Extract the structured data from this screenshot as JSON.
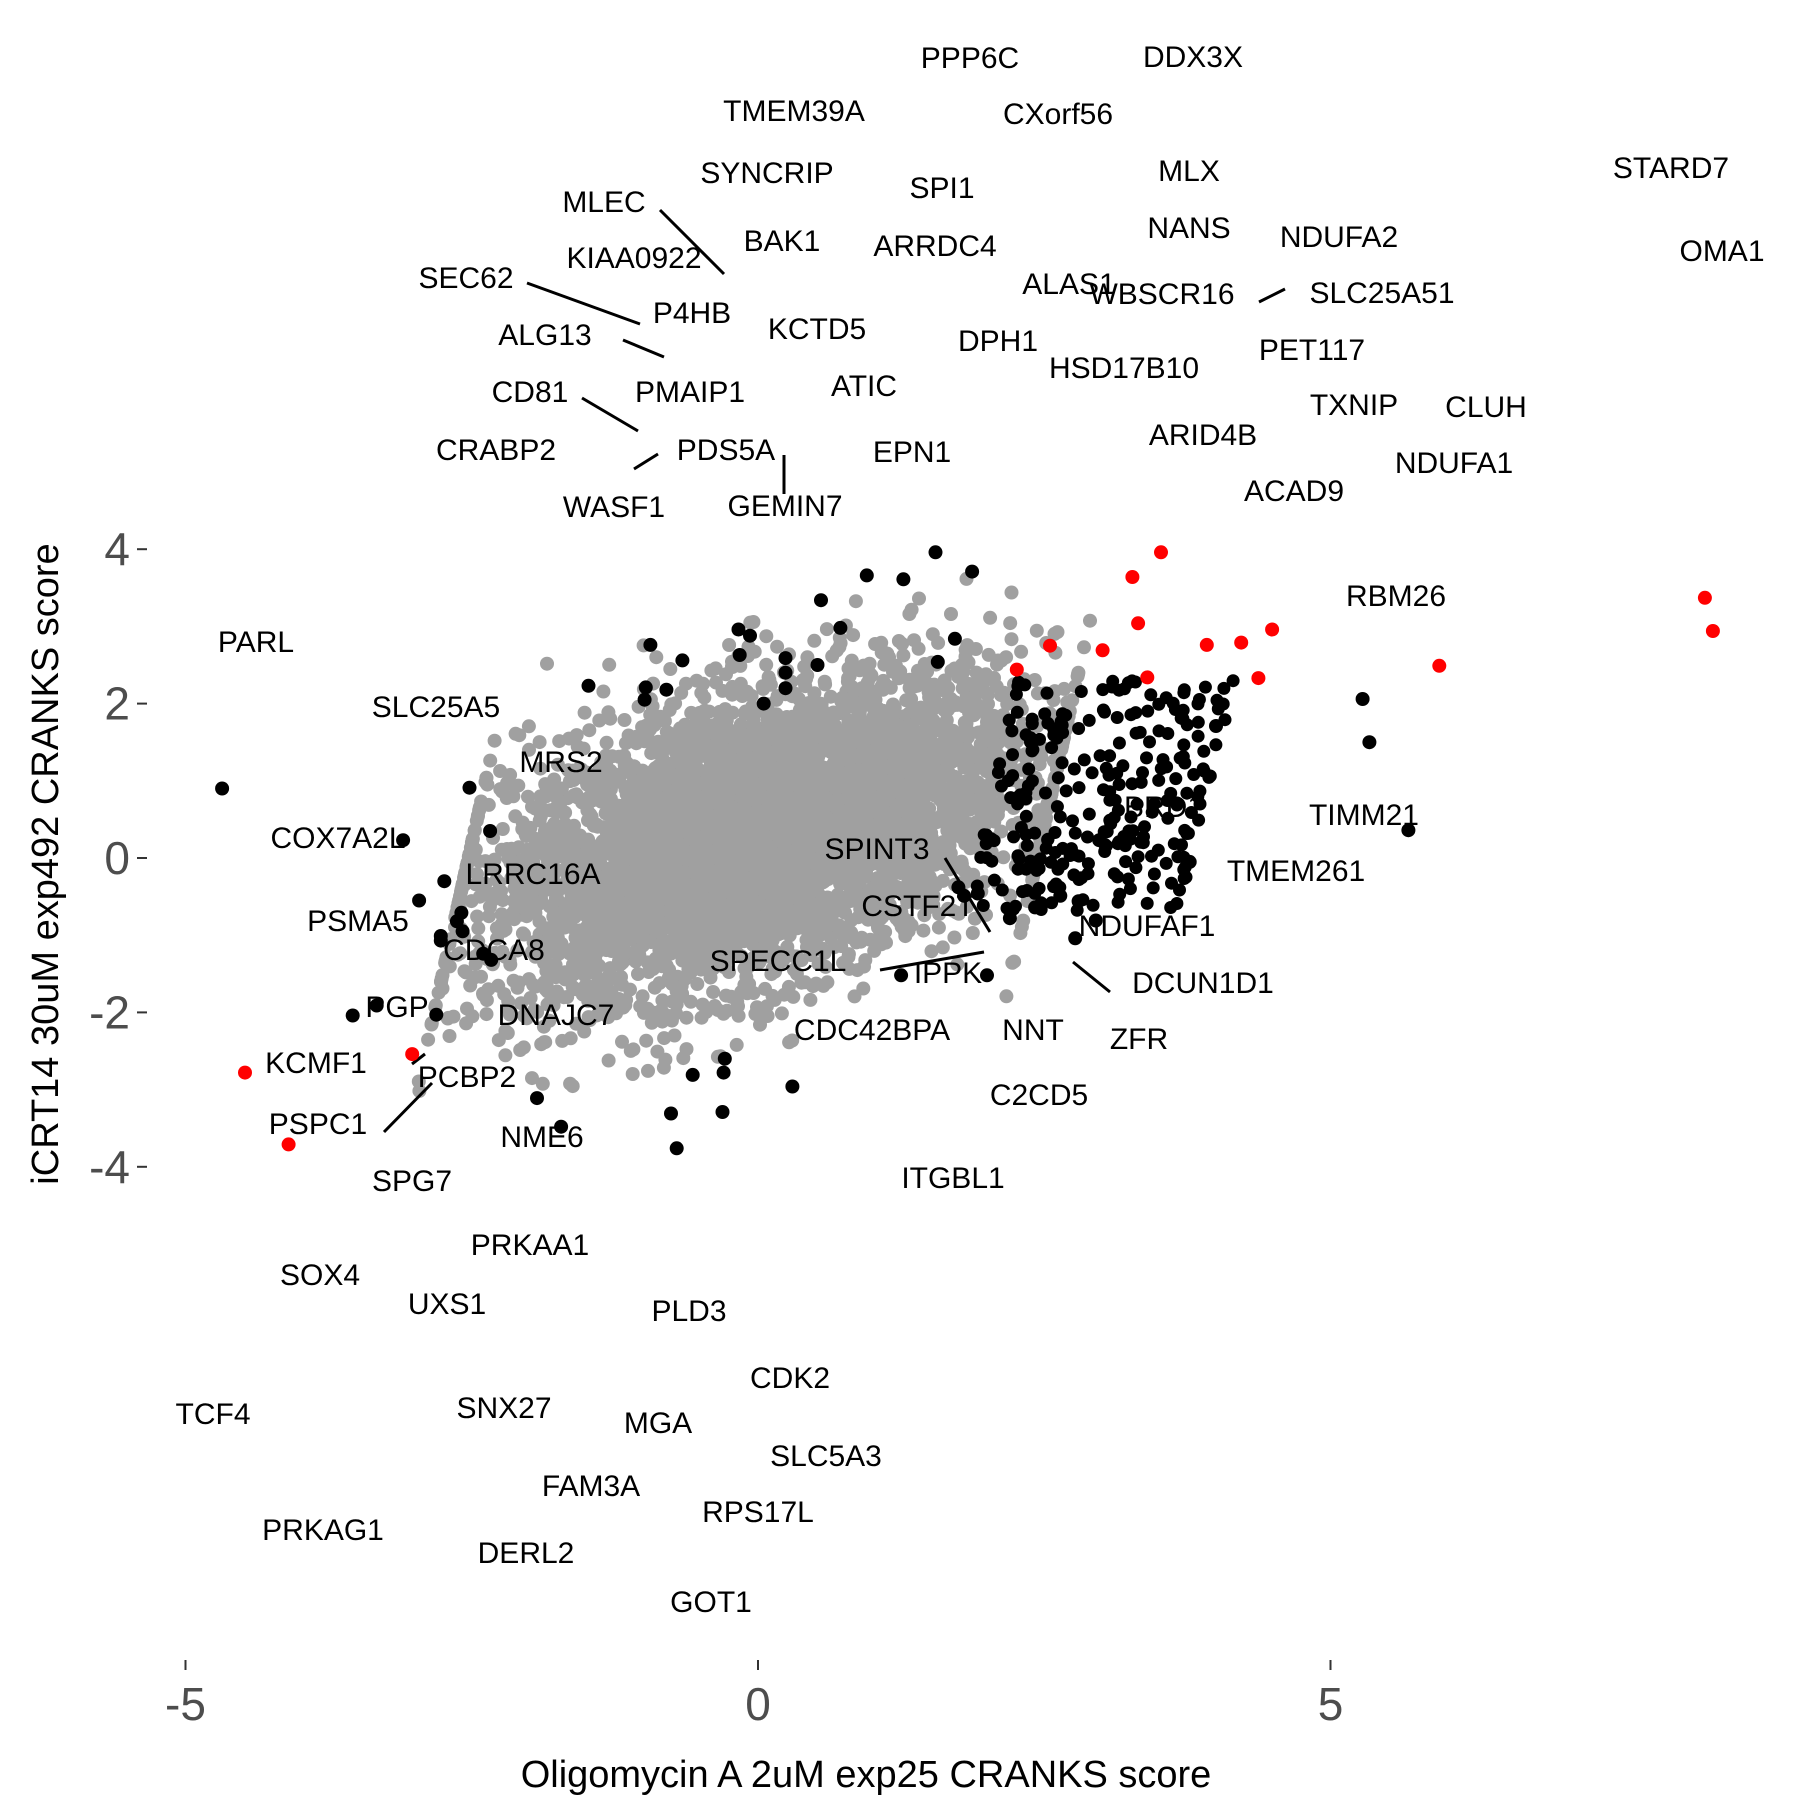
{
  "chart_data": {
    "type": "scatter",
    "xlabel": "Oligomycin A 2uM exp25 CRANKS score",
    "ylabel": "iCRT14 30uM exp492 CRANKS score",
    "xlim": [
      -5.5,
      8.9
    ],
    "ylim": [
      -4.2,
      4.4
    ],
    "xticks": [
      -5,
      0,
      5
    ],
    "yticks": [
      -4,
      -2,
      0,
      2,
      4
    ],
    "grid": false,
    "colors": {
      "background_points": "#a0a0a0",
      "labeled_points": "#000000",
      "highlighted_points": "#ff0000"
    },
    "background_cloud": {
      "description": "thousands of unlabeled genes",
      "center": [
        0,
        0.3
      ],
      "x_spread": 1.15,
      "y_spread": 0.95,
      "count": 5200
    },
    "points": [
      {
        "gene": "PPP6C",
        "x": 1.55,
        "y": 3.96,
        "highlight": false
      },
      {
        "gene": "DDX3X",
        "x": 3.52,
        "y": 3.96,
        "highlight": true
      },
      {
        "gene": "TMEM39A",
        "x": 0.95,
        "y": 3.66,
        "highlight": false
      },
      {
        "gene": "CXorf56",
        "x": 1.87,
        "y": 3.71,
        "highlight": false
      },
      {
        "gene": "SPI1",
        "x": 1.27,
        "y": 3.61,
        "highlight": false
      },
      {
        "gene": "MLX",
        "x": 3.27,
        "y": 3.64,
        "highlight": true
      },
      {
        "gene": "STARD7",
        "x": 8.27,
        "y": 3.37,
        "highlight": true
      },
      {
        "gene": "SYNCRIP",
        "x": 0.55,
        "y": 3.34,
        "highlight": false
      },
      {
        "gene": "MLEC",
        "x": -0.17,
        "y": 2.96,
        "highlight": false
      },
      {
        "gene": "KIAA0922",
        "x": -0.07,
        "y": 2.88,
        "highlight": false
      },
      {
        "gene": "BAK1",
        "x": 0.72,
        "y": 2.98,
        "highlight": false
      },
      {
        "gene": "ARRDC4",
        "x": 1.72,
        "y": 2.84,
        "highlight": false
      },
      {
        "gene": "NANS",
        "x": 3.32,
        "y": 3.04,
        "highlight": true
      },
      {
        "gene": "NDUFA2",
        "x": 4.49,
        "y": 2.96,
        "highlight": true
      },
      {
        "gene": "OMA1",
        "x": 8.34,
        "y": 2.94,
        "highlight": true
      },
      {
        "gene": "SEC62",
        "x": -0.94,
        "y": 2.76,
        "highlight": false
      },
      {
        "gene": "P4HB",
        "x": -0.16,
        "y": 2.63,
        "highlight": false
      },
      {
        "gene": "KCTD5",
        "x": 0.24,
        "y": 2.59,
        "highlight": false
      },
      {
        "gene": "ALAS1",
        "x": 2.55,
        "y": 2.75,
        "highlight": true
      },
      {
        "gene": "WBSCR16",
        "x": 3.01,
        "y": 2.69,
        "highlight": true
      },
      {
        "gene": "SLC25A51",
        "x": 4.22,
        "y": 2.79,
        "highlight": true
      },
      {
        "gene": "ALG13",
        "x": -0.66,
        "y": 2.56,
        "highlight": false
      },
      {
        "gene": "DPH1",
        "x": 1.57,
        "y": 2.54,
        "highlight": false
      },
      {
        "gene": "PET117",
        "x": 3.92,
        "y": 2.76,
        "highlight": true
      },
      {
        "gene": "ATIC",
        "x": 0.52,
        "y": 2.5,
        "highlight": false
      },
      {
        "gene": "HSD17B10",
        "x": 2.26,
        "y": 2.44,
        "highlight": true
      },
      {
        "gene": "CLUH",
        "x": 5.95,
        "y": 2.49,
        "highlight": true
      },
      {
        "gene": "PMAIP1",
        "x": 0.24,
        "y": 2.4,
        "highlight": false
      },
      {
        "gene": "CD81",
        "x": -0.98,
        "y": 2.21,
        "highlight": false
      },
      {
        "gene": "TXNIP",
        "x": 4.37,
        "y": 2.33,
        "highlight": true
      },
      {
        "gene": "CRABP2",
        "x": -1.48,
        "y": 2.23,
        "highlight": false
      },
      {
        "gene": "PDS5A",
        "x": -0.8,
        "y": 2.18,
        "highlight": false
      },
      {
        "gene": "ARID4B",
        "x": 3.4,
        "y": 2.34,
        "highlight": true
      },
      {
        "gene": "EPN1",
        "x": 0.24,
        "y": 2.2,
        "highlight": false
      },
      {
        "gene": "NDUFA1",
        "x": 5.28,
        "y": 2.06,
        "highlight": false
      },
      {
        "gene": "WASF1",
        "x": -0.99,
        "y": 2.05,
        "highlight": false
      },
      {
        "gene": "GEMIN7",
        "x": 0.05,
        "y": 2.0,
        "highlight": false
      },
      {
        "gene": "ACAD9",
        "x": 4.0,
        "y": 1.71,
        "highlight": false
      },
      {
        "gene": "RBM26",
        "x": 5.34,
        "y": 1.5,
        "highlight": false
      },
      {
        "gene": "PARL",
        "x": -4.68,
        "y": 0.9,
        "highlight": false
      },
      {
        "gene": "SLC25A5",
        "x": -2.52,
        "y": 0.91,
        "highlight": false
      },
      {
        "gene": "MRS2",
        "x": -2.34,
        "y": 0.35,
        "highlight": false
      },
      {
        "gene": "TIMM21",
        "x": 5.68,
        "y": 0.36,
        "highlight": false
      },
      {
        "gene": "BRD1",
        "x": 2.98,
        "y": 0.23,
        "highlight": false
      },
      {
        "gene": "COX7A2L",
        "x": -3.1,
        "y": 0.23,
        "highlight": false
      },
      {
        "gene": "SPINT3",
        "x": 1.75,
        "y": -0.38,
        "highlight": false
      },
      {
        "gene": "TMEM261",
        "x": 3.77,
        "y": -0.05,
        "highlight": false
      },
      {
        "gene": "LRRC16A",
        "x": -2.74,
        "y": -0.3,
        "highlight": false
      },
      {
        "gene": "CSTF2T",
        "x": 1.92,
        "y": -0.46,
        "highlight": false
      },
      {
        "gene": "PSMA5",
        "x": -2.96,
        "y": -0.55,
        "highlight": false
      },
      {
        "gene": "NDUFAF1",
        "x": 2.64,
        "y": -0.49,
        "highlight": false
      },
      {
        "gene": "CDCA8",
        "x": -2.59,
        "y": -0.71,
        "highlight": false
      },
      {
        "gene": "SPECC1L",
        "x": 1.8,
        "y": -0.49,
        "highlight": false
      },
      {
        "gene": "IPPK",
        "x": 2.42,
        "y": -0.64,
        "highlight": false
      },
      {
        "gene": "DCUN1D1",
        "x": 2.8,
        "y": -0.56,
        "highlight": false
      },
      {
        "gene": "PGP",
        "x": -2.63,
        "y": -0.82,
        "highlight": false
      },
      {
        "gene": "DNAJC7",
        "x": -2.58,
        "y": -0.95,
        "highlight": false
      },
      {
        "gene": "NNT",
        "x": 2.2,
        "y": -0.78,
        "highlight": false
      },
      {
        "gene": "ZFR",
        "x": 2.95,
        "y": -0.81,
        "highlight": false
      },
      {
        "gene": "CDC42BPA",
        "x": 2.77,
        "y": -1.04,
        "highlight": false
      },
      {
        "gene": "KCMF1",
        "x": -2.77,
        "y": -1.01,
        "highlight": false
      },
      {
        "gene": "PCBP2",
        "x": -2.4,
        "y": -1.24,
        "highlight": false
      },
      {
        "gene": "PSPC1",
        "x": -2.77,
        "y": -1.07,
        "highlight": false
      },
      {
        "gene": "NME6",
        "x": -2.33,
        "y": -1.32,
        "highlight": false
      },
      {
        "gene": "C2CD5",
        "x": 2.0,
        "y": -1.52,
        "highlight": false
      },
      {
        "gene": "ITGBL1",
        "x": 1.25,
        "y": -1.52,
        "highlight": false
      },
      {
        "gene": "SPG7",
        "x": -3.33,
        "y": -1.91,
        "highlight": false
      },
      {
        "gene": "SOX4",
        "x": -3.54,
        "y": -2.04,
        "highlight": false
      },
      {
        "gene": "PRKAA1",
        "x": -2.81,
        "y": -2.03,
        "highlight": false
      },
      {
        "gene": "UXS1",
        "x": -3.02,
        "y": -2.54,
        "highlight": true
      },
      {
        "gene": "PLD3",
        "x": -0.29,
        "y": -2.6,
        "highlight": false
      },
      {
        "gene": "TCF4",
        "x": -4.48,
        "y": -2.78,
        "highlight": true
      },
      {
        "gene": "CDK2",
        "x": -0.3,
        "y": -2.78,
        "highlight": false
      },
      {
        "gene": "MGA",
        "x": -0.57,
        "y": -2.81,
        "highlight": false
      },
      {
        "gene": "SNX27",
        "x": -1.93,
        "y": -3.11,
        "highlight": false
      },
      {
        "gene": "SLC5A3",
        "x": 0.3,
        "y": -2.96,
        "highlight": false
      },
      {
        "gene": "FAM3A",
        "x": -0.76,
        "y": -3.31,
        "highlight": false
      },
      {
        "gene": "RPS17L",
        "x": -0.31,
        "y": -3.29,
        "highlight": false
      },
      {
        "gene": "DERL2",
        "x": -1.72,
        "y": -3.48,
        "highlight": false
      },
      {
        "gene": "PRKAG1",
        "x": -4.1,
        "y": -3.71,
        "highlight": true
      },
      {
        "gene": "GOT1",
        "x": -0.71,
        "y": -3.76,
        "highlight": false
      }
    ]
  }
}
